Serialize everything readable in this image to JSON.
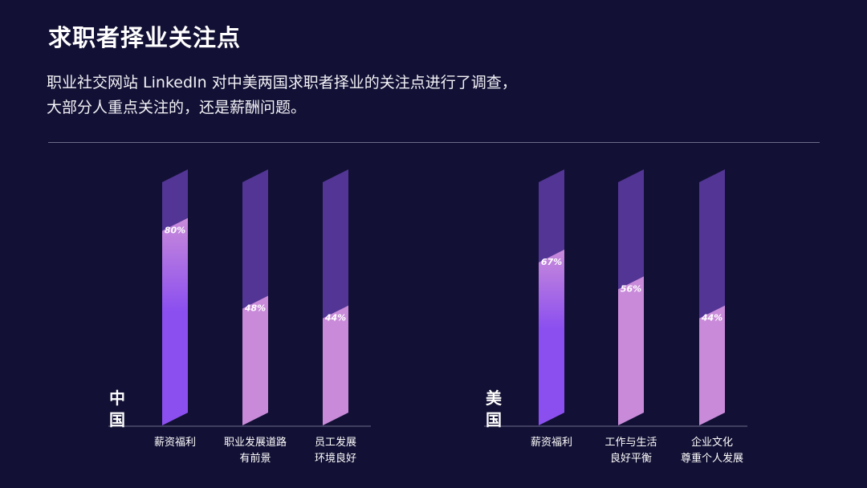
{
  "page": {
    "title": "求职者择业关注点",
    "desc_line1": "职业社交网站 LinkedIn 对中美两国求职者择业的关注点进行了调查，",
    "desc_line2": "大部分人重点关注的，还是薪酬问题。"
  },
  "colors": {
    "background": "#121034",
    "bar_track": "#523594",
    "highlight_fill": "#8b4ff0",
    "value_fill": "#c98bd9",
    "axis": "#6e6c8c"
  },
  "chart_data": [
    {
      "type": "bar",
      "group_label": "中国",
      "categories": [
        [
          "薪资福利"
        ],
        [
          "职业发展道路",
          "有前景"
        ],
        [
          "员工发展",
          "环境良好"
        ]
      ],
      "values": [
        80,
        48,
        44
      ],
      "value_labels": [
        "80%",
        "48%",
        "44%"
      ],
      "highlight": [
        true,
        false,
        false
      ],
      "ylim": [
        0,
        100
      ]
    },
    {
      "type": "bar",
      "group_label": "美国",
      "categories": [
        [
          "薪资福利"
        ],
        [
          "工作与生活",
          "良好平衡"
        ],
        [
          "企业文化",
          "尊重个人发展"
        ]
      ],
      "values": [
        67,
        56,
        44
      ],
      "value_labels": [
        "67%",
        "56%",
        "44%"
      ],
      "highlight": [
        true,
        false,
        false
      ],
      "ylim": [
        0,
        100
      ]
    }
  ]
}
